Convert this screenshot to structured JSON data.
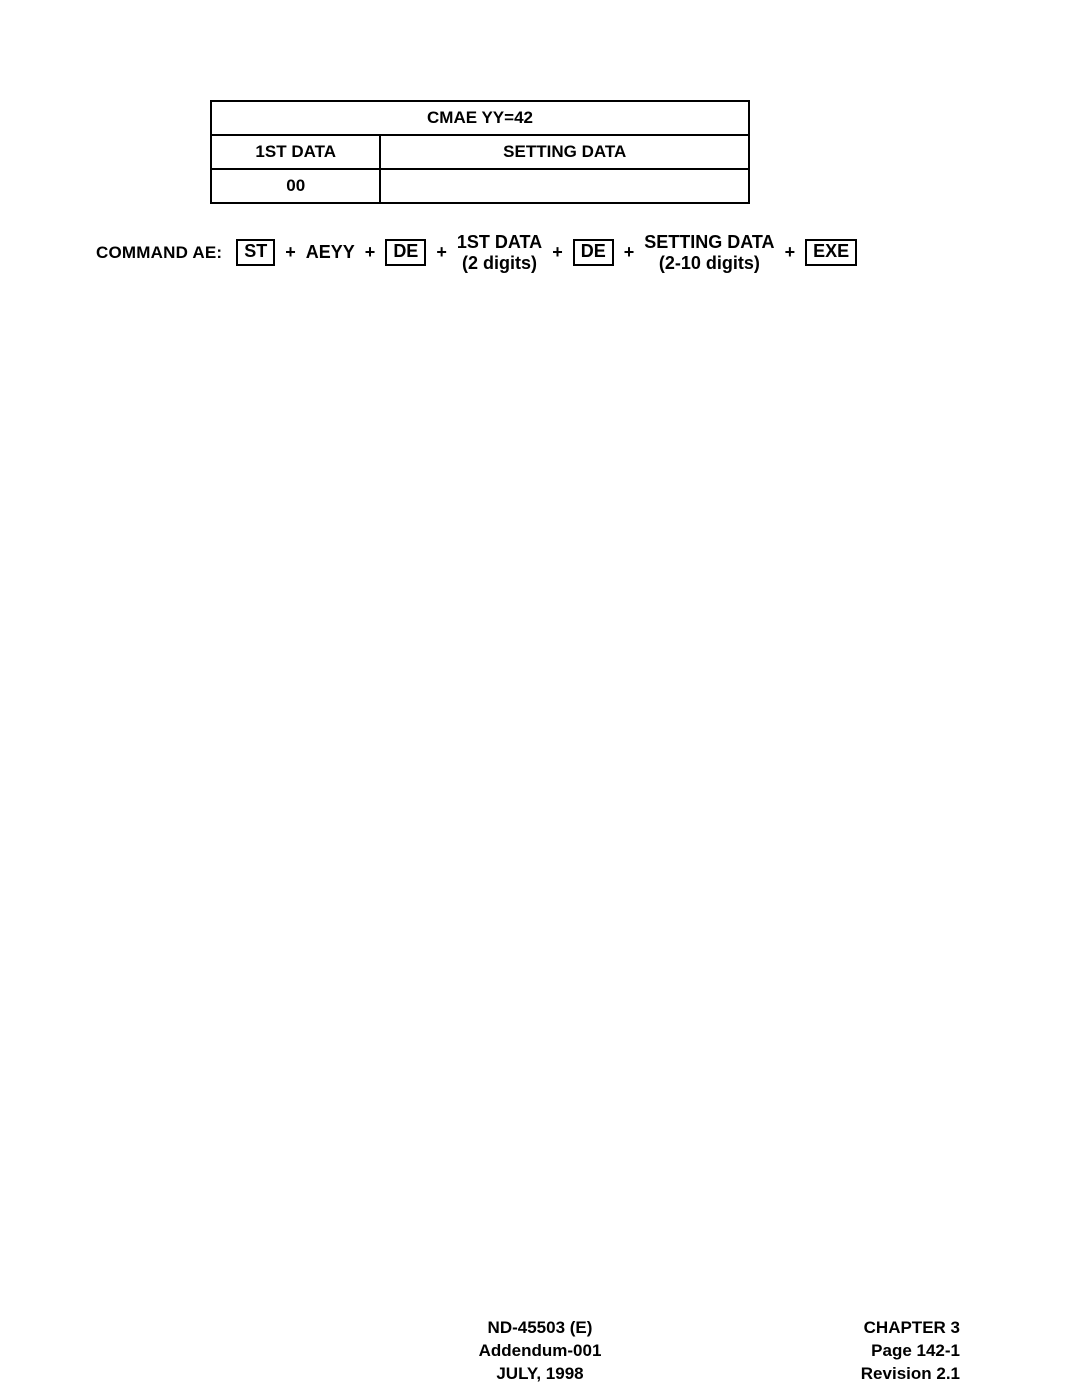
{
  "table": {
    "title": "CMAE YY=42",
    "header_col1": "1ST DATA",
    "header_col2": "SETTING DATA",
    "row0_col1": "00",
    "row0_col2": ""
  },
  "command": {
    "label": "COMMAND AE:",
    "st": "ST",
    "plus": "+",
    "aeyy": "AEYY",
    "de": "DE",
    "first_data_top": "1ST DATA",
    "first_data_bot": "(2 digits)",
    "setting_data_top": "SETTING DATA",
    "setting_data_bot": "(2-10 digits)",
    "exe": "EXE"
  },
  "footer": {
    "center_line1": "ND-45503 (E)",
    "center_line2": "Addendum-001",
    "center_line3": "JULY, 1998",
    "right_line1": "CHAPTER 3",
    "right_line2": "Page 142-1",
    "right_line3": "Revision 2.1"
  }
}
